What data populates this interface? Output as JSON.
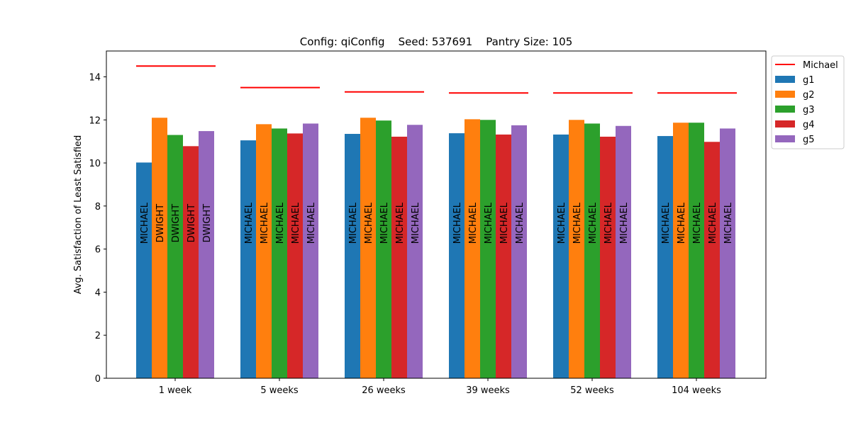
{
  "chart_data": {
    "type": "bar",
    "title": "Config: qiConfig    Seed: 537691    Pantry Size: 105",
    "xlabel": "",
    "ylabel": "Avg. Satisfaction of Least Satisfied",
    "ylim": [
      0,
      15.2
    ],
    "yticks": [
      0,
      2,
      4,
      6,
      8,
      10,
      12,
      14
    ],
    "categories": [
      "1 week",
      "5 weeks",
      "26 weeks",
      "39 weeks",
      "52 weeks",
      "104 weeks"
    ],
    "series": [
      {
        "name": "g1",
        "color": "#1f77b4",
        "values": [
          10.02,
          11.05,
          11.35,
          11.38,
          11.32,
          11.25
        ],
        "labels": [
          "MICHAEL",
          "MICHAEL",
          "MICHAEL",
          "MICHAEL",
          "MICHAEL",
          "MICHAEL"
        ]
      },
      {
        "name": "g2",
        "color": "#ff7f0e",
        "values": [
          12.1,
          11.8,
          12.1,
          12.03,
          12.0,
          11.87
        ],
        "labels": [
          "DWIGHT",
          "MICHAEL",
          "MICHAEL",
          "MICHAEL",
          "MICHAEL",
          "MICHAEL"
        ]
      },
      {
        "name": "g3",
        "color": "#2ca02c",
        "values": [
          11.3,
          11.6,
          11.97,
          12.0,
          11.83,
          11.87
        ],
        "labels": [
          "DWIGHT",
          "MICHAEL",
          "MICHAEL",
          "MICHAEL",
          "MICHAEL",
          "MICHAEL"
        ]
      },
      {
        "name": "g4",
        "color": "#d62728",
        "values": [
          10.78,
          11.37,
          11.22,
          11.32,
          11.22,
          10.98
        ],
        "labels": [
          "DWIGHT",
          "MICHAEL",
          "MICHAEL",
          "MICHAEL",
          "MICHAEL",
          "MICHAEL"
        ]
      },
      {
        "name": "g5",
        "color": "#9467bd",
        "values": [
          11.48,
          11.83,
          11.77,
          11.75,
          11.72,
          11.6
        ],
        "labels": [
          "DWIGHT",
          "MICHAEL",
          "MICHAEL",
          "MICHAEL",
          "MICHAEL",
          "MICHAEL"
        ]
      }
    ],
    "reference_line": {
      "name": "Michael",
      "color": "#ff0000",
      "values": [
        14.5,
        13.5,
        13.3,
        13.25,
        13.25,
        13.25
      ]
    },
    "legend": {
      "position": "outside-top-right",
      "entries": [
        "Michael",
        "g1",
        "g2",
        "g3",
        "g4",
        "g5"
      ]
    },
    "grid": false
  }
}
